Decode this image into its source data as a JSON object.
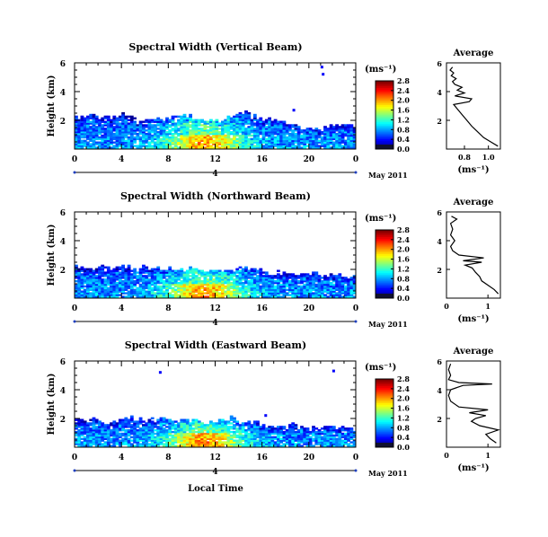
{
  "figure": {
    "xlabel": "Local Time",
    "ylabel": "Height (km)",
    "date_label": "May 2011",
    "unit_label": "(ms⁻¹)",
    "avg_title": "Average",
    "day_marker": "4"
  },
  "chart_data": [
    {
      "type": "heatmap",
      "title": "Spectral Width (Vertical Beam)",
      "xlabel": "",
      "ylabel": "Height (km)",
      "x_ticks": [
        "0",
        "4",
        "8",
        "12",
        "16",
        "20",
        "0"
      ],
      "y_ticks": [
        "2",
        "4",
        "6"
      ],
      "xlim": [
        0,
        24
      ],
      "ylim": [
        0,
        6
      ],
      "colorbar": {
        "ticks": [
          "0.0",
          "0.4",
          "0.8",
          "1.2",
          "1.6",
          "2.0",
          "2.4",
          "2.8"
        ],
        "range": [
          0,
          3.0
        ]
      },
      "echo_top_km": [
        2.2,
        2.3,
        2.1,
        2.2,
        2.4,
        2.0,
        1.9,
        2.1,
        2.2,
        2.3,
        2.1,
        1.8,
        1.9,
        2.3,
        2.5,
        2.2,
        2.0,
        1.9,
        1.6,
        1.5,
        1.4,
        1.5,
        1.6,
        1.5
      ],
      "sparse_echoes": [
        {
          "time": 21.0,
          "height_km": 5.8
        },
        {
          "time": 21.1,
          "height_km": 5.3
        },
        {
          "time": 18.6,
          "height_km": 2.8
        }
      ],
      "average_profile": {
        "title": "Average",
        "xlabel": "(ms⁻¹)",
        "x_ticks": [
          "0.8",
          "1.0"
        ],
        "y_ticks": [
          "2",
          "4",
          "6"
        ],
        "xlim": [
          0.65,
          1.1
        ],
        "ylim": [
          0,
          6
        ],
        "height_km": [
          0.2,
          0.5,
          0.8,
          1.2,
          1.6,
          2.0,
          2.4,
          2.8,
          3.1,
          3.3,
          3.5,
          3.7,
          3.9,
          4.1,
          4.3,
          4.5,
          4.7,
          4.9,
          5.1,
          5.3,
          5.5,
          5.7
        ],
        "width": [
          1.08,
          1.02,
          0.96,
          0.91,
          0.86,
          0.82,
          0.78,
          0.74,
          0.71,
          0.84,
          0.86,
          0.72,
          0.8,
          0.74,
          0.78,
          0.72,
          0.7,
          0.73,
          0.69,
          0.71,
          0.68,
          0.7
        ]
      }
    },
    {
      "type": "heatmap",
      "title": "Spectral Width (Northward Beam)",
      "xlabel": "",
      "ylabel": "Height (km)",
      "x_ticks": [
        "0",
        "4",
        "8",
        "12",
        "16",
        "20",
        "0"
      ],
      "y_ticks": [
        "2",
        "4",
        "6"
      ],
      "xlim": [
        0,
        24
      ],
      "ylim": [
        0,
        6
      ],
      "colorbar": {
        "ticks": [
          "0.0",
          "0.4",
          "0.8",
          "1.2",
          "1.6",
          "2.0",
          "2.4",
          "2.8"
        ],
        "range": [
          0,
          3.0
        ]
      },
      "echo_top_km": [
        2.1,
        2.0,
        2.2,
        2.0,
        2.1,
        2.2,
        2.0,
        1.9,
        2.0,
        2.1,
        1.9,
        1.8,
        1.8,
        1.9,
        2.0,
        1.9,
        1.8,
        1.7,
        1.6,
        1.7,
        1.6,
        1.5,
        1.6,
        1.4
      ],
      "sparse_echoes": [],
      "average_profile": {
        "title": "Average",
        "xlabel": "(ms⁻¹)",
        "x_ticks": [
          "0",
          "1"
        ],
        "y_ticks": [
          "2",
          "4",
          "6"
        ],
        "xlim": [
          0,
          1.3
        ],
        "ylim": [
          0,
          6
        ],
        "height_km": [
          0.3,
          0.6,
          0.9,
          1.2,
          1.5,
          1.8,
          2.1,
          2.3,
          2.5,
          2.6,
          2.8,
          3.0,
          3.3,
          3.6,
          4.0,
          4.4,
          4.8,
          5.2,
          5.5,
          5.7
        ],
        "width": [
          1.25,
          1.15,
          1.0,
          0.85,
          0.8,
          0.7,
          0.62,
          0.45,
          0.85,
          0.4,
          0.9,
          0.3,
          0.15,
          0.1,
          0.2,
          0.1,
          0.15,
          0.1,
          0.25,
          0.12
        ]
      }
    },
    {
      "type": "heatmap",
      "title": "Spectral Width (Eastward Beam)",
      "xlabel": "Local Time",
      "ylabel": "Height (km)",
      "x_ticks": [
        "0",
        "4",
        "8",
        "12",
        "16",
        "20",
        "0"
      ],
      "y_ticks": [
        "2",
        "4",
        "6"
      ],
      "xlim": [
        0,
        24
      ],
      "ylim": [
        0,
        6
      ],
      "colorbar": {
        "ticks": [
          "0.0",
          "0.4",
          "0.8",
          "1.2",
          "1.6",
          "2.0",
          "2.4",
          "2.8"
        ],
        "range": [
          0,
          3.0
        ]
      },
      "echo_top_km": [
        1.8,
        1.9,
        1.7,
        1.8,
        2.0,
        1.9,
        1.8,
        1.9,
        1.7,
        1.8,
        1.9,
        1.7,
        1.8,
        1.9,
        1.7,
        1.6,
        1.5,
        1.4,
        1.5,
        1.4,
        1.3,
        1.4,
        1.3,
        1.2
      ],
      "sparse_echoes": [
        {
          "time": 7.2,
          "height_km": 5.3
        },
        {
          "time": 22.0,
          "height_km": 5.4
        },
        {
          "time": 16.2,
          "height_km": 2.3
        }
      ],
      "average_profile": {
        "title": "Average",
        "xlabel": "(ms⁻¹)",
        "x_ticks": [
          "0",
          "1"
        ],
        "y_ticks": [
          "2",
          "4",
          "6"
        ],
        "xlim": [
          0,
          1.3
        ],
        "ylim": [
          0,
          6
        ],
        "height_km": [
          0.3,
          0.6,
          0.9,
          1.2,
          1.5,
          1.8,
          2.0,
          2.2,
          2.4,
          2.6,
          2.8,
          3.2,
          3.6,
          4.0,
          4.3,
          4.4,
          4.5,
          4.7,
          5.0,
          5.4,
          5.8
        ],
        "width": [
          1.2,
          1.05,
          0.95,
          1.25,
          0.8,
          0.6,
          0.7,
          0.95,
          0.55,
          1.0,
          0.3,
          0.1,
          0.05,
          0.1,
          0.4,
          1.1,
          0.3,
          0.05,
          0.1,
          0.05,
          0.1
        ]
      }
    }
  ]
}
